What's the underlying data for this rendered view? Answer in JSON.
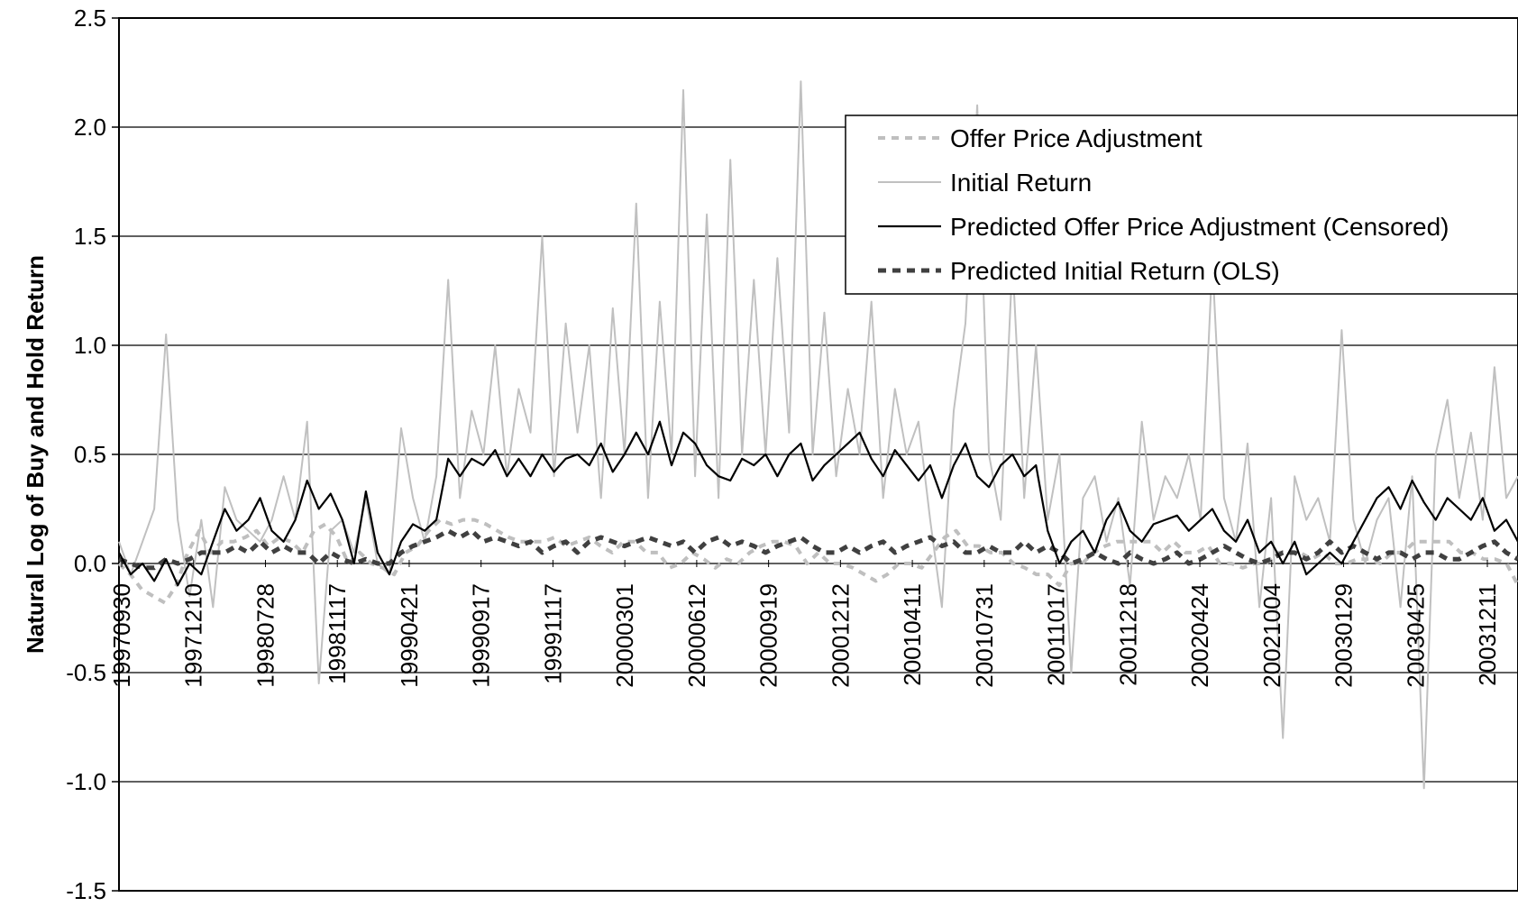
{
  "chart_data": {
    "type": "line",
    "title": "",
    "xlabel": "",
    "ylabel": "Natural Log of Buy and Hold Return",
    "ylim": [
      -1.5,
      2.5
    ],
    "y_ticks": [
      "2.5",
      "2.0",
      "1.5",
      "1.0",
      "0.5",
      "0.0",
      "-0.5",
      "-1.0",
      "-1.5"
    ],
    "x_tick_labels": [
      "19970930",
      "19971210",
      "19980728",
      "19981117",
      "19990421",
      "19990917",
      "19991117",
      "20000301",
      "20000612",
      "20000919",
      "20001212",
      "20010411",
      "20010731",
      "20011017",
      "20011218",
      "20020424",
      "20021004",
      "20030129",
      "20030425",
      "20031211"
    ],
    "grid": true,
    "legend_position": "top-right",
    "series": [
      {
        "name": "Offer Price Adjustment",
        "color": "#bfbfbf",
        "style": "dashed",
        "values": [
          0.0,
          -0.05,
          -0.12,
          -0.15,
          -0.18,
          -0.1,
          0.05,
          0.15,
          0.05,
          0.1,
          0.1,
          0.12,
          0.15,
          0.08,
          0.12,
          0.1,
          0.05,
          0.15,
          0.18,
          0.12,
          0.0,
          0.05,
          0.0,
          -0.02,
          -0.05,
          0.05,
          0.08,
          0.15,
          0.2,
          0.18,
          0.2,
          0.2,
          0.18,
          0.15,
          0.12,
          0.1,
          0.1,
          0.1,
          0.12,
          0.08,
          0.1,
          0.12,
          0.08,
          0.05,
          0.1,
          0.1,
          0.05,
          0.05,
          -0.02,
          0.0,
          0.05,
          0.02,
          -0.02,
          0.02,
          0.0,
          0.05,
          0.08,
          0.1,
          0.1,
          0.08,
          0.0,
          0.05,
          0.0,
          0.0,
          -0.02,
          -0.05,
          -0.08,
          -0.05,
          0.0,
          0.0,
          -0.02,
          0.05,
          0.12,
          0.15,
          0.08,
          0.08,
          0.05,
          0.05,
          0.0,
          -0.02,
          -0.05,
          -0.05,
          -0.1,
          0.0,
          0.0,
          0.05,
          0.08,
          0.1,
          0.1,
          0.1,
          0.1,
          0.05,
          0.1,
          0.05,
          0.05,
          0.08,
          0.0,
          0.0,
          -0.02,
          0.0,
          0.0,
          0.05,
          0.05,
          0.05,
          0.02,
          0.05,
          0.0,
          0.0,
          0.02,
          0.02,
          0.0,
          0.05,
          0.05,
          0.1,
          0.1,
          0.1,
          0.1,
          0.05,
          0.05,
          0.02,
          0.02,
          0.0,
          -0.1
        ]
      },
      {
        "name": "Initial Return",
        "color": "#c0c0c0",
        "style": "solid",
        "values": [
          0.1,
          -0.05,
          0.1,
          0.25,
          1.05,
          0.2,
          -0.15,
          0.2,
          -0.2,
          0.35,
          0.2,
          0.15,
          0.1,
          0.2,
          0.4,
          0.2,
          0.65,
          -0.55,
          0.15,
          0.2,
          0.05,
          0.3,
          0.0,
          -0.05,
          0.62,
          0.3,
          0.1,
          0.4,
          1.3,
          0.3,
          0.7,
          0.5,
          1.0,
          0.4,
          0.8,
          0.6,
          1.5,
          0.4,
          1.1,
          0.6,
          1.0,
          0.3,
          1.17,
          0.5,
          1.65,
          0.3,
          1.2,
          0.5,
          2.17,
          0.4,
          1.6,
          0.3,
          1.85,
          0.5,
          1.3,
          0.5,
          1.4,
          0.6,
          2.21,
          0.5,
          1.15,
          0.4,
          0.8,
          0.5,
          1.2,
          0.3,
          0.8,
          0.5,
          0.65,
          0.2,
          -0.2,
          0.7,
          1.1,
          2.1,
          0.5,
          0.2,
          1.39,
          0.3,
          1.0,
          0.2,
          0.5,
          -0.5,
          0.3,
          0.4,
          0.1,
          0.3,
          -0.1,
          0.65,
          0.2,
          0.4,
          0.3,
          0.5,
          0.2,
          1.39,
          0.3,
          0.1,
          0.55,
          -0.2,
          0.3,
          -0.8,
          0.4,
          0.2,
          0.3,
          0.1,
          1.07,
          0.2,
          0.0,
          0.2,
          0.3,
          -0.2,
          0.4,
          -1.03,
          0.5,
          0.75,
          0.3,
          0.6,
          0.2,
          0.9,
          0.3,
          0.4
        ]
      },
      {
        "name": "Predicted Offer Price Adjustment (Censored)",
        "color": "#000000",
        "style": "solid",
        "values": [
          0.05,
          -0.05,
          0.0,
          -0.08,
          0.02,
          -0.1,
          0.0,
          -0.05,
          0.1,
          0.25,
          0.15,
          0.2,
          0.3,
          0.15,
          0.1,
          0.2,
          0.38,
          0.25,
          0.32,
          0.2,
          0.0,
          0.33,
          0.05,
          -0.05,
          0.1,
          0.18,
          0.15,
          0.2,
          0.48,
          0.4,
          0.48,
          0.45,
          0.52,
          0.4,
          0.48,
          0.4,
          0.5,
          0.42,
          0.48,
          0.5,
          0.45,
          0.55,
          0.42,
          0.5,
          0.6,
          0.5,
          0.65,
          0.45,
          0.6,
          0.55,
          0.45,
          0.4,
          0.38,
          0.48,
          0.45,
          0.5,
          0.4,
          0.5,
          0.55,
          0.38,
          0.45,
          0.5,
          0.55,
          0.6,
          0.48,
          0.4,
          0.52,
          0.45,
          0.38,
          0.45,
          0.3,
          0.45,
          0.55,
          0.4,
          0.35,
          0.45,
          0.5,
          0.4,
          0.45,
          0.15,
          0.0,
          0.1,
          0.15,
          0.05,
          0.2,
          0.28,
          0.15,
          0.1,
          0.18,
          0.2,
          0.22,
          0.15,
          0.2,
          0.25,
          0.15,
          0.1,
          0.2,
          0.05,
          0.1,
          0.0,
          0.1,
          -0.05,
          0.0,
          0.05,
          0.0,
          0.1,
          0.2,
          0.3,
          0.35,
          0.25,
          0.38,
          0.28,
          0.2,
          0.3,
          0.25,
          0.2,
          0.3,
          0.15,
          0.2,
          0.1
        ]
      },
      {
        "name": "Predicted Initial Return (OLS)",
        "color": "#404040",
        "style": "dashed",
        "values": [
          0.02,
          0.0,
          -0.02,
          -0.02,
          0.02,
          0.0,
          0.02,
          0.05,
          0.05,
          0.05,
          0.08,
          0.05,
          0.1,
          0.05,
          0.08,
          0.05,
          0.05,
          0.0,
          0.05,
          0.02,
          0.0,
          0.02,
          0.0,
          0.0,
          0.05,
          0.08,
          0.1,
          0.12,
          0.15,
          0.12,
          0.15,
          0.1,
          0.12,
          0.1,
          0.08,
          0.1,
          0.05,
          0.08,
          0.1,
          0.05,
          0.1,
          0.12,
          0.1,
          0.08,
          0.1,
          0.12,
          0.1,
          0.08,
          0.1,
          0.05,
          0.1,
          0.12,
          0.08,
          0.1,
          0.08,
          0.05,
          0.08,
          0.1,
          0.12,
          0.08,
          0.05,
          0.05,
          0.08,
          0.05,
          0.08,
          0.1,
          0.05,
          0.08,
          0.1,
          0.12,
          0.08,
          0.1,
          0.05,
          0.05,
          0.08,
          0.05,
          0.05,
          0.1,
          0.05,
          0.08,
          0.05,
          0.0,
          0.02,
          0.05,
          0.02,
          0.0,
          0.05,
          0.02,
          0.0,
          0.02,
          0.05,
          0.0,
          0.02,
          0.05,
          0.08,
          0.05,
          0.02,
          0.0,
          0.02,
          0.05,
          0.05,
          0.02,
          0.05,
          0.1,
          0.05,
          0.08,
          0.05,
          0.02,
          0.05,
          0.05,
          0.02,
          0.05,
          0.05,
          0.02,
          0.02,
          0.05,
          0.08,
          0.1,
          0.05,
          0.02
        ]
      }
    ]
  }
}
